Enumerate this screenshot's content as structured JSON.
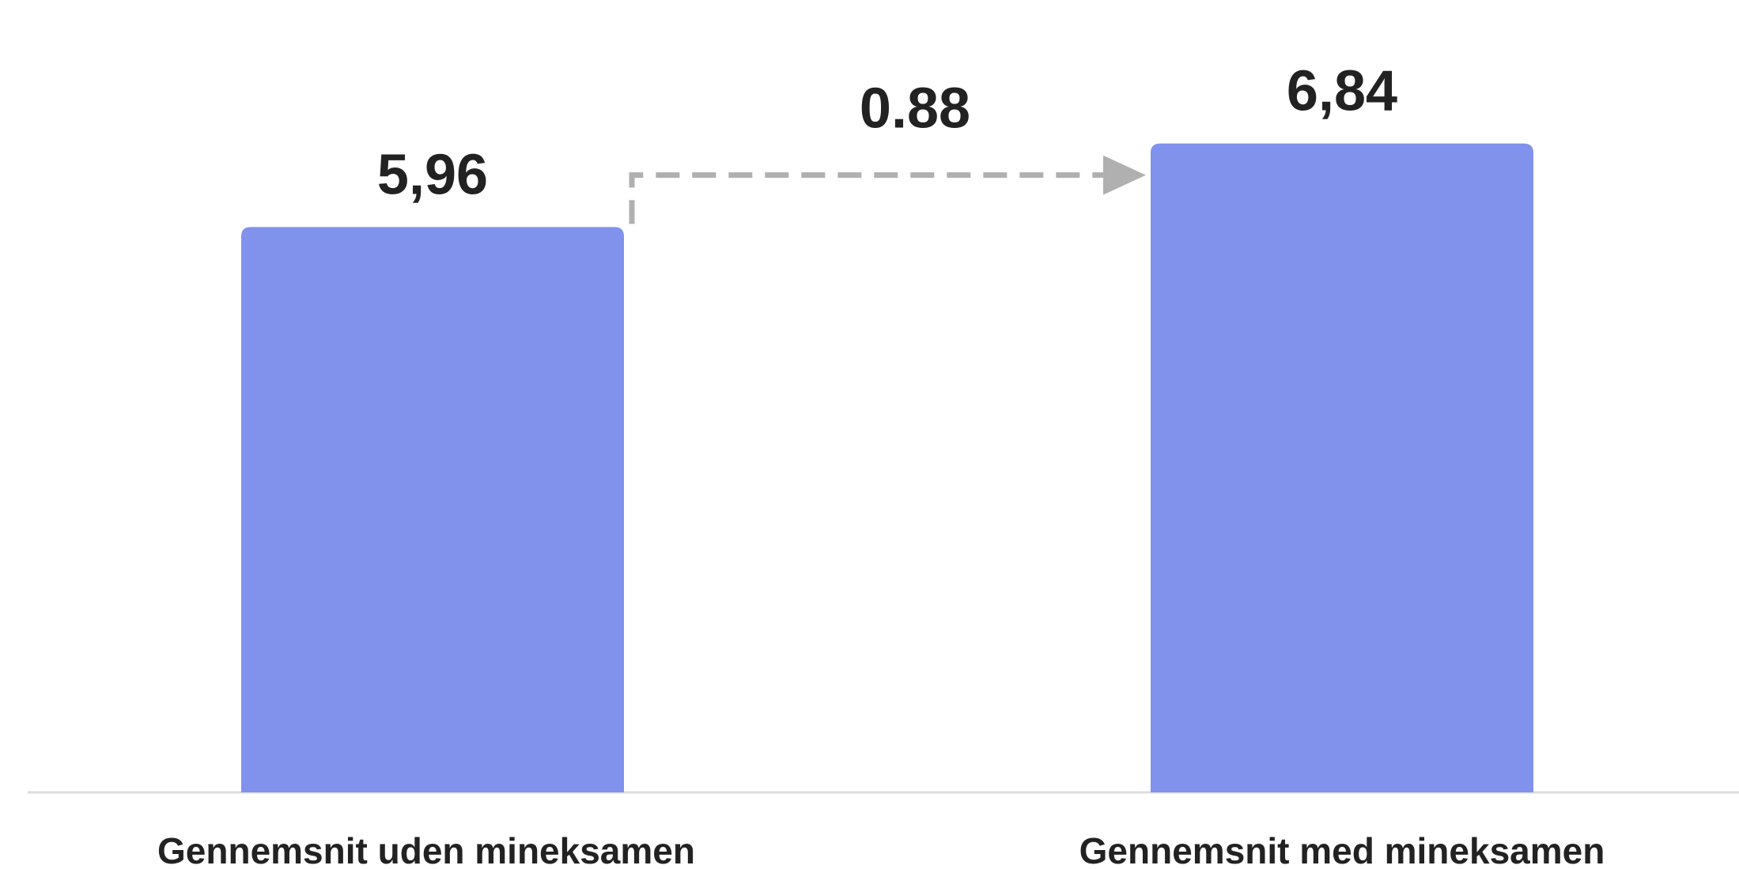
{
  "chart_data": {
    "type": "bar",
    "categories": [
      "Gennemsnit uden mineksamen",
      "Gennemsnit med mineksamen"
    ],
    "values": [
      5.96,
      6.84
    ],
    "value_labels": [
      "5,96",
      "6,84"
    ],
    "annotations": [
      {
        "text": "0.88",
        "from_category": 0,
        "to_category": 1,
        "style": "dashed-arrow"
      }
    ],
    "title": "",
    "xlabel": "",
    "ylabel": "",
    "ylim": [
      0,
      7.5
    ],
    "grid": false,
    "legend": "none",
    "colors": {
      "bar": "#8092ec",
      "arrow": "#b0b0b0",
      "baseline": "#dddddd",
      "text": "#222222"
    }
  }
}
